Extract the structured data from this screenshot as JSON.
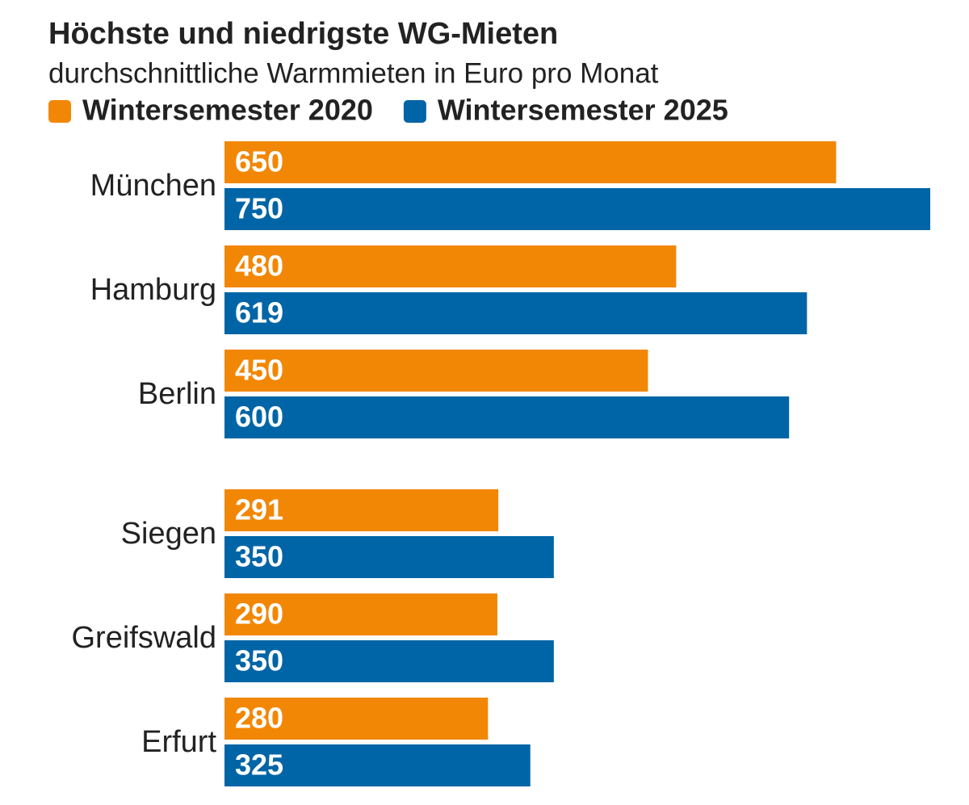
{
  "chart_data": {
    "type": "bar",
    "orientation": "horizontal",
    "title": "Höchste und niedrigste WG-Mieten",
    "subtitle": "durchschnittliche Warmmieten in Euro pro Monat",
    "categories": [
      "München",
      "Hamburg",
      "Berlin",
      "Siegen",
      "Greifswald",
      "Erfurt"
    ],
    "series": [
      {
        "name": "Wintersemester 2020",
        "color": "#f28705",
        "values": [
          650,
          480,
          450,
          291,
          290,
          280
        ]
      },
      {
        "name": "Wintersemester 2025",
        "color": "#0065a6",
        "values": [
          750,
          619,
          600,
          350,
          350,
          325
        ]
      }
    ]
  }
}
